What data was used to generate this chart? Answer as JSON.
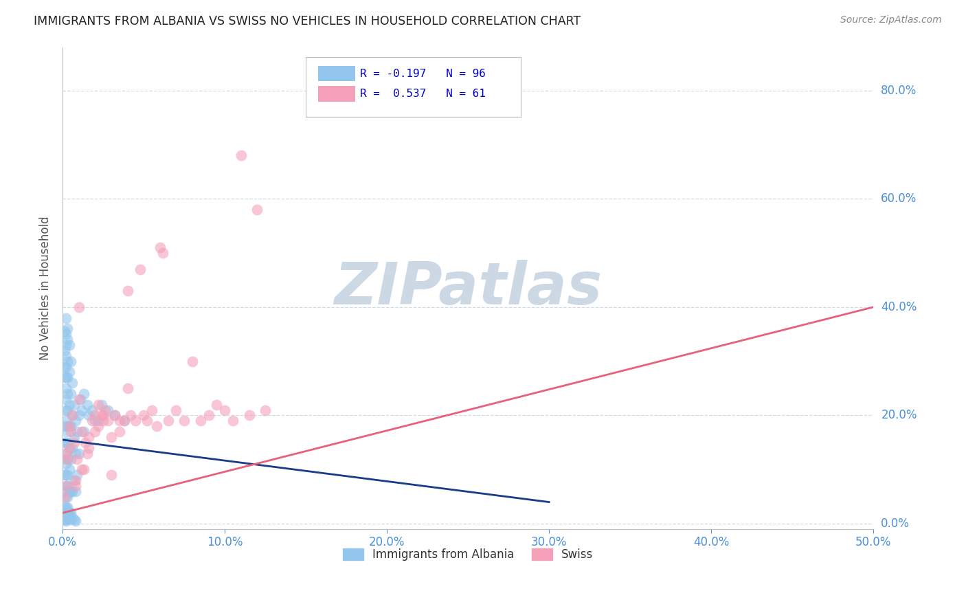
{
  "title": "IMMIGRANTS FROM ALBANIA VS SWISS NO VEHICLES IN HOUSEHOLD CORRELATION CHART",
  "source": "Source: ZipAtlas.com",
  "ylabel": "No Vehicles in Household",
  "xlim": [
    0.0,
    0.5
  ],
  "ylim": [
    -0.01,
    0.88
  ],
  "xticks": [
    0.0,
    0.1,
    0.2,
    0.3,
    0.4,
    0.5
  ],
  "yticks": [
    0.0,
    0.2,
    0.4,
    0.6,
    0.8
  ],
  "blue_color": "#93c6ec",
  "pink_color": "#f4a0b8",
  "blue_line_color": "#1a3a8a",
  "pink_line_color": "#e8607a",
  "background_color": "#ffffff",
  "grid_color": "#c8d8e8",
  "title_color": "#222222",
  "axis_label_color": "#4a90d9",
  "watermark": "ZIPatlas",
  "watermark_color": "#cdd8e5",
  "blue_scatter_x": [
    0.001,
    0.001,
    0.001,
    0.001,
    0.001,
    0.001,
    0.001,
    0.001,
    0.001,
    0.001,
    0.002,
    0.002,
    0.002,
    0.002,
    0.002,
    0.002,
    0.002,
    0.002,
    0.002,
    0.002,
    0.002,
    0.002,
    0.002,
    0.002,
    0.002,
    0.002,
    0.002,
    0.002,
    0.002,
    0.002,
    0.003,
    0.003,
    0.003,
    0.003,
    0.003,
    0.003,
    0.003,
    0.003,
    0.003,
    0.003,
    0.003,
    0.003,
    0.003,
    0.003,
    0.004,
    0.004,
    0.004,
    0.004,
    0.004,
    0.004,
    0.004,
    0.004,
    0.005,
    0.005,
    0.005,
    0.005,
    0.005,
    0.005,
    0.006,
    0.006,
    0.006,
    0.006,
    0.007,
    0.007,
    0.007,
    0.008,
    0.008,
    0.008,
    0.009,
    0.009,
    0.01,
    0.01,
    0.011,
    0.012,
    0.013,
    0.013,
    0.015,
    0.016,
    0.018,
    0.02,
    0.022,
    0.024,
    0.028,
    0.032,
    0.038,
    0.001,
    0.001,
    0.002,
    0.002,
    0.003,
    0.003,
    0.004,
    0.005,
    0.006,
    0.007,
    0.008
  ],
  "blue_scatter_y": [
    0.355,
    0.32,
    0.29,
    0.27,
    0.18,
    0.15,
    0.12,
    0.09,
    0.06,
    0.03,
    0.38,
    0.35,
    0.33,
    0.31,
    0.29,
    0.27,
    0.25,
    0.23,
    0.21,
    0.19,
    0.17,
    0.15,
    0.13,
    0.11,
    0.09,
    0.07,
    0.05,
    0.03,
    0.01,
    0.005,
    0.36,
    0.34,
    0.3,
    0.27,
    0.24,
    0.21,
    0.18,
    0.15,
    0.12,
    0.09,
    0.07,
    0.05,
    0.03,
    0.01,
    0.33,
    0.28,
    0.22,
    0.18,
    0.14,
    0.1,
    0.06,
    0.02,
    0.3,
    0.24,
    0.18,
    0.12,
    0.06,
    0.02,
    0.26,
    0.2,
    0.14,
    0.06,
    0.22,
    0.16,
    0.08,
    0.19,
    0.13,
    0.06,
    0.17,
    0.09,
    0.2,
    0.13,
    0.23,
    0.21,
    0.24,
    0.17,
    0.22,
    0.2,
    0.21,
    0.19,
    0.19,
    0.22,
    0.21,
    0.2,
    0.19,
    0.008,
    0.02,
    0.008,
    0.02,
    0.015,
    0.025,
    0.015,
    0.008,
    0.012,
    0.008,
    0.005
  ],
  "pink_scatter_x": [
    0.001,
    0.002,
    0.002,
    0.003,
    0.004,
    0.004,
    0.005,
    0.006,
    0.007,
    0.008,
    0.009,
    0.01,
    0.01,
    0.012,
    0.013,
    0.014,
    0.015,
    0.016,
    0.018,
    0.02,
    0.022,
    0.022,
    0.024,
    0.025,
    0.026,
    0.028,
    0.03,
    0.032,
    0.035,
    0.038,
    0.04,
    0.042,
    0.045,
    0.048,
    0.05,
    0.052,
    0.055,
    0.058,
    0.06,
    0.062,
    0.065,
    0.07,
    0.075,
    0.08,
    0.085,
    0.09,
    0.095,
    0.1,
    0.105,
    0.11,
    0.115,
    0.12,
    0.125,
    0.008,
    0.012,
    0.016,
    0.02,
    0.025,
    0.03,
    0.035,
    0.04
  ],
  "pink_scatter_y": [
    0.05,
    0.07,
    0.13,
    0.12,
    0.14,
    0.18,
    0.17,
    0.2,
    0.15,
    0.08,
    0.12,
    0.23,
    0.4,
    0.17,
    0.1,
    0.15,
    0.13,
    0.16,
    0.19,
    0.2,
    0.22,
    0.18,
    0.2,
    0.19,
    0.21,
    0.19,
    0.09,
    0.2,
    0.17,
    0.19,
    0.43,
    0.2,
    0.19,
    0.47,
    0.2,
    0.19,
    0.21,
    0.18,
    0.51,
    0.5,
    0.19,
    0.21,
    0.19,
    0.3,
    0.19,
    0.2,
    0.22,
    0.21,
    0.19,
    0.68,
    0.2,
    0.58,
    0.21,
    0.07,
    0.1,
    0.14,
    0.17,
    0.2,
    0.16,
    0.19,
    0.25
  ],
  "blue_line_x": [
    0.0,
    0.3
  ],
  "blue_line_y": [
    0.155,
    0.04
  ],
  "pink_line_x": [
    0.0,
    0.5
  ],
  "pink_line_y": [
    0.02,
    0.4
  ]
}
